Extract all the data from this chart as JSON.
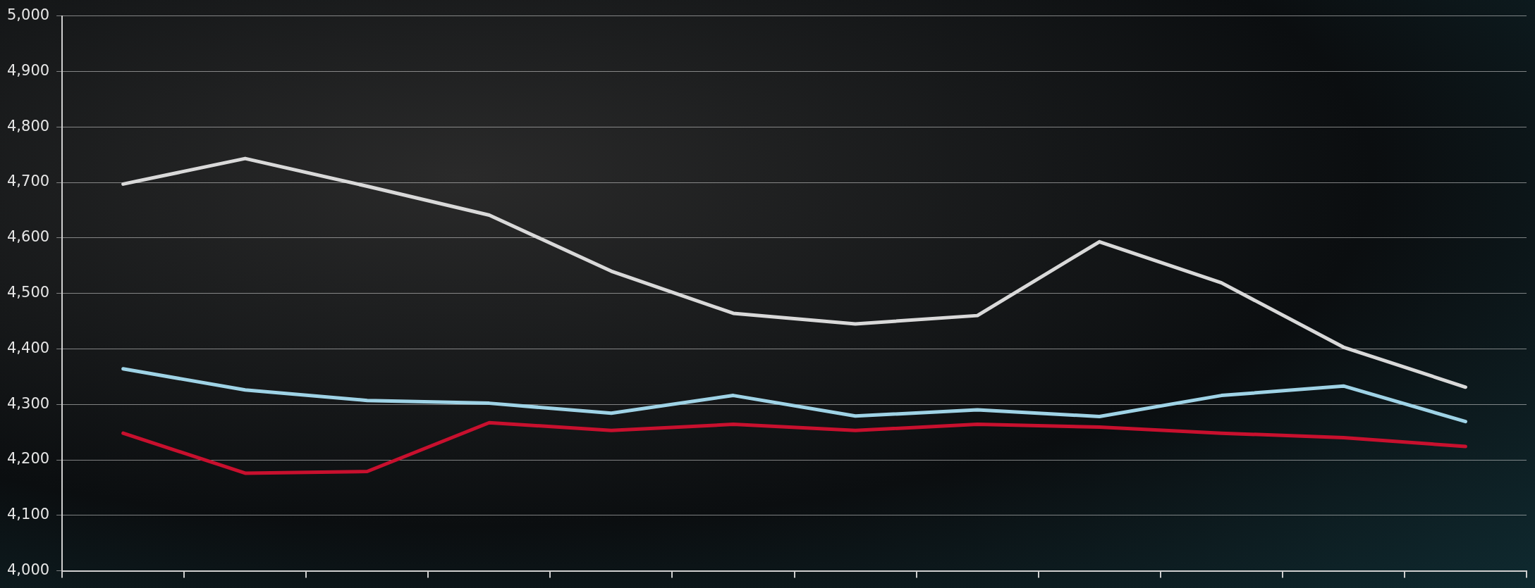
{
  "chart_data": {
    "type": "line",
    "categories": [
      null,
      null,
      null,
      null,
      null,
      null,
      null,
      null,
      null,
      null,
      null,
      null
    ],
    "series": [
      {
        "color": "#d9d9d9",
        "values": [
          4697,
          4743,
          4693,
          4641,
          4540,
          4464,
          4445,
          4460,
          4593,
          4519,
          4403,
          4331
        ]
      },
      {
        "color": "#9fd3e6",
        "values": [
          4364,
          4326,
          4307,
          4302,
          4284,
          4316,
          4279,
          4290,
          4278,
          4316,
          4333,
          4269
        ]
      },
      {
        "color": "#c8102e",
        "values": [
          4248,
          4176,
          4179,
          4267,
          4253,
          4264,
          4253,
          4264,
          4259,
          4248,
          4240,
          4224
        ]
      }
    ],
    "ylim": [
      4000,
      5000
    ],
    "yticks": [
      {
        "value": 4000,
        "label": "4,000"
      },
      {
        "value": 4100,
        "label": "4,100"
      },
      {
        "value": 4200,
        "label": "4,200"
      },
      {
        "value": 4300,
        "label": "4,300"
      },
      {
        "value": 4400,
        "label": "4,400"
      },
      {
        "value": 4500,
        "label": "4,500"
      },
      {
        "value": 4600,
        "label": "4,600"
      },
      {
        "value": 4700,
        "label": "4,700"
      },
      {
        "value": 4800,
        "label": "4,800"
      },
      {
        "value": 4900,
        "label": "4,900"
      },
      {
        "value": 5000,
        "label": "5,000"
      }
    ],
    "grid": "y",
    "legend": false,
    "marker": "none",
    "line_style": "solid"
  }
}
